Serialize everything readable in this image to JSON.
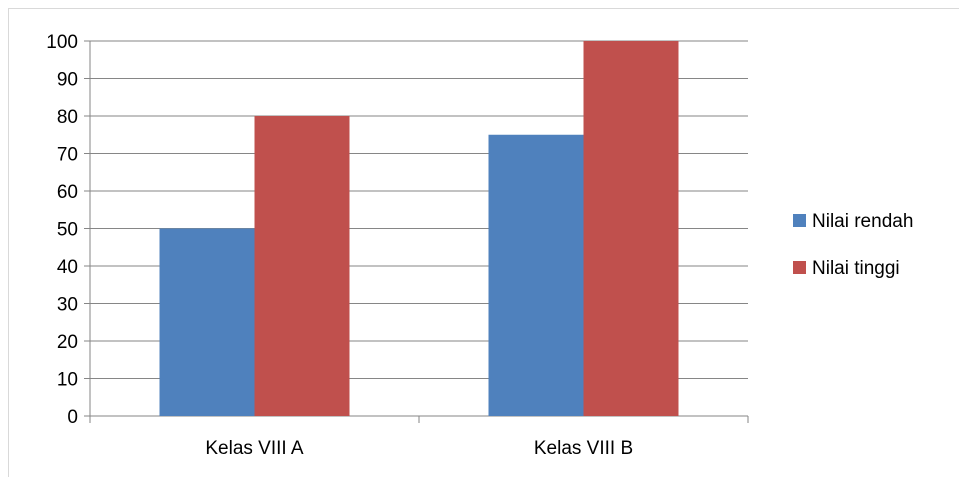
{
  "chart_data": {
    "type": "bar",
    "categories": [
      "Kelas VIII A",
      "Kelas VIII B"
    ],
    "series": [
      {
        "name": "Nilai rendah",
        "values": [
          50,
          75
        ],
        "color": "#4F81BD"
      },
      {
        "name": "Nilai tinggi",
        "values": [
          80,
          100
        ],
        "color": "#C0504D"
      }
    ],
    "yticks": [
      "0",
      "10",
      "20",
      "30",
      "40",
      "50",
      "60",
      "70",
      "80",
      "90",
      "100"
    ],
    "ylim": [
      0,
      100
    ],
    "title": "",
    "xlabel": "",
    "ylabel": "",
    "grid": true,
    "legend_position": "right"
  }
}
